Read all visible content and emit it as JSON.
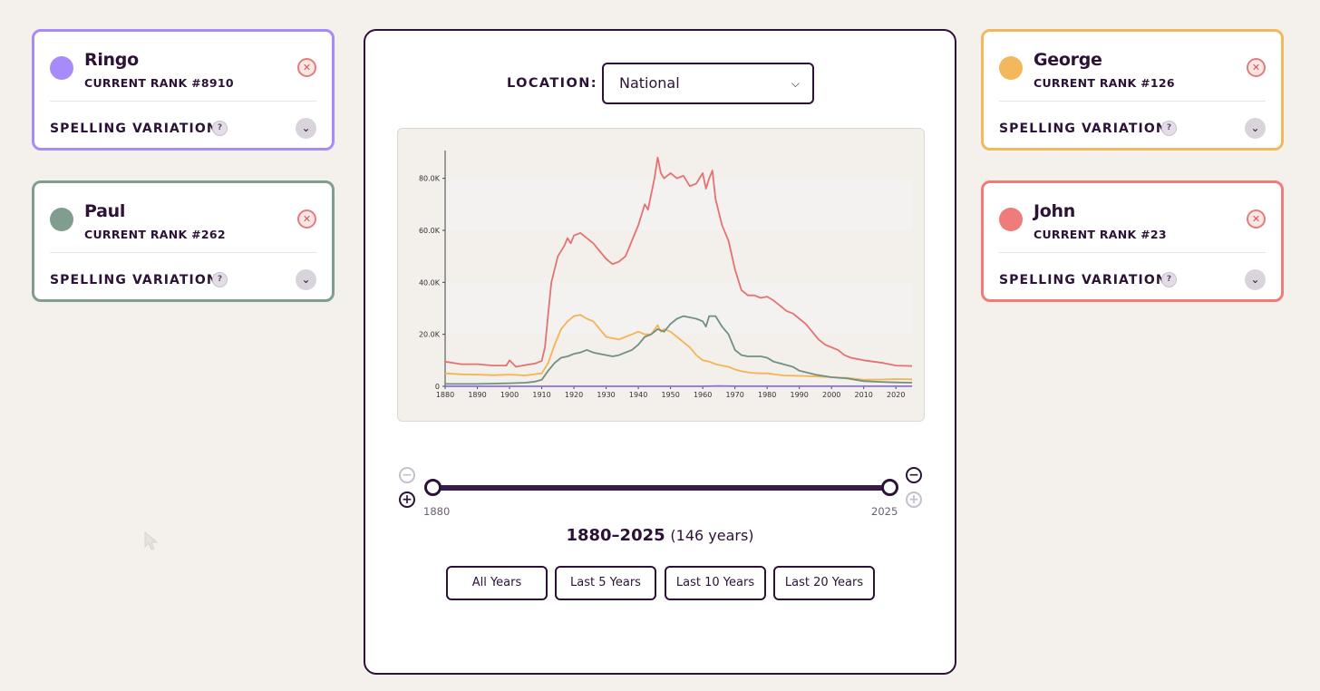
{
  "cards": [
    {
      "name": "Ringo",
      "rank": "CURRENT RANK #8910",
      "color": "#a78bfa"
    },
    {
      "name": "Paul",
      "rank": "CURRENT RANK #262",
      "color": "#7f9e8f"
    },
    {
      "name": "George",
      "rank": "CURRENT RANK #126",
      "color": "#f4b85c"
    },
    {
      "name": "John",
      "rank": "CURRENT RANK #23",
      "color": "#ef7b7b"
    }
  ],
  "spelling_label": "SPELLING VARIATIONS",
  "help_icon": "?",
  "location": {
    "label": "LOCATION:",
    "value": "National"
  },
  "slider": {
    "start_label": "1880",
    "end_label": "2025",
    "range_text": "1880–2025",
    "count_text": "(146 years)"
  },
  "quick_ranges": [
    "All Years",
    "Last 5 Years",
    "Last 10 Years",
    "Last 20 Years"
  ],
  "chart_data": {
    "type": "line",
    "x_ticks": [
      1880,
      1890,
      1900,
      1910,
      1920,
      1930,
      1940,
      1950,
      1960,
      1970,
      1980,
      1990,
      2000,
      2010,
      2020
    ],
    "y_ticks": [
      "0",
      "20.0K",
      "40.0K",
      "60.0K",
      "80.0K"
    ],
    "ylim": [
      0,
      90000
    ],
    "xlim": [
      1880,
      2025
    ],
    "series": [
      {
        "name": "John",
        "color": "#e37272",
        "points": [
          [
            1880,
            9500
          ],
          [
            1885,
            8500
          ],
          [
            1890,
            8500
          ],
          [
            1895,
            8000
          ],
          [
            1899,
            8000
          ],
          [
            1900,
            10000
          ],
          [
            1902,
            7500
          ],
          [
            1905,
            8200
          ],
          [
            1908,
            8800
          ],
          [
            1910,
            9800
          ],
          [
            1911,
            15000
          ],
          [
            1912,
            28000
          ],
          [
            1913,
            40000
          ],
          [
            1915,
            50000
          ],
          [
            1917,
            54000
          ],
          [
            1918,
            57000
          ],
          [
            1919,
            55000
          ],
          [
            1920,
            58000
          ],
          [
            1922,
            59000
          ],
          [
            1924,
            57000
          ],
          [
            1926,
            55000
          ],
          [
            1928,
            52000
          ],
          [
            1930,
            49000
          ],
          [
            1932,
            47000
          ],
          [
            1934,
            48000
          ],
          [
            1936,
            50000
          ],
          [
            1938,
            56000
          ],
          [
            1940,
            62000
          ],
          [
            1942,
            70000
          ],
          [
            1943,
            68000
          ],
          [
            1945,
            80000
          ],
          [
            1946,
            88000
          ],
          [
            1947,
            82000
          ],
          [
            1948,
            80000
          ],
          [
            1950,
            82000
          ],
          [
            1952,
            80000
          ],
          [
            1954,
            81000
          ],
          [
            1956,
            77000
          ],
          [
            1958,
            78000
          ],
          [
            1960,
            82000
          ],
          [
            1961,
            76000
          ],
          [
            1962,
            80000
          ],
          [
            1963,
            83000
          ],
          [
            1964,
            72000
          ],
          [
            1966,
            62000
          ],
          [
            1968,
            56000
          ],
          [
            1970,
            45000
          ],
          [
            1972,
            37000
          ],
          [
            1974,
            35000
          ],
          [
            1976,
            35000
          ],
          [
            1978,
            34000
          ],
          [
            1980,
            34500
          ],
          [
            1982,
            33000
          ],
          [
            1984,
            31000
          ],
          [
            1986,
            29000
          ],
          [
            1988,
            28000
          ],
          [
            1990,
            26000
          ],
          [
            1992,
            24000
          ],
          [
            1994,
            21000
          ],
          [
            1996,
            18000
          ],
          [
            1998,
            16000
          ],
          [
            2000,
            15000
          ],
          [
            2002,
            14000
          ],
          [
            2004,
            12000
          ],
          [
            2006,
            11000
          ],
          [
            2008,
            10500
          ],
          [
            2010,
            10000
          ],
          [
            2013,
            9500
          ],
          [
            2016,
            9000
          ],
          [
            2020,
            8000
          ],
          [
            2025,
            7800
          ]
        ]
      },
      {
        "name": "George",
        "color": "#f4b455",
        "points": [
          [
            1880,
            5000
          ],
          [
            1885,
            4600
          ],
          [
            1890,
            4500
          ],
          [
            1895,
            4300
          ],
          [
            1900,
            4500
          ],
          [
            1905,
            4200
          ],
          [
            1910,
            5000
          ],
          [
            1912,
            9000
          ],
          [
            1914,
            16000
          ],
          [
            1916,
            22000
          ],
          [
            1918,
            25000
          ],
          [
            1920,
            27000
          ],
          [
            1922,
            27500
          ],
          [
            1924,
            26000
          ],
          [
            1926,
            25000
          ],
          [
            1928,
            22000
          ],
          [
            1930,
            19000
          ],
          [
            1932,
            18500
          ],
          [
            1934,
            18000
          ],
          [
            1936,
            19000
          ],
          [
            1938,
            20000
          ],
          [
            1940,
            21000
          ],
          [
            1942,
            20000
          ],
          [
            1944,
            20000
          ],
          [
            1946,
            23500
          ],
          [
            1947,
            21000
          ],
          [
            1948,
            22000
          ],
          [
            1950,
            21000
          ],
          [
            1952,
            19000
          ],
          [
            1954,
            17000
          ],
          [
            1956,
            15000
          ],
          [
            1958,
            12000
          ],
          [
            1960,
            10000
          ],
          [
            1962,
            9500
          ],
          [
            1964,
            8500
          ],
          [
            1966,
            8000
          ],
          [
            1968,
            7500
          ],
          [
            1970,
            6500
          ],
          [
            1972,
            5800
          ],
          [
            1975,
            5200
          ],
          [
            1978,
            5000
          ],
          [
            1980,
            5000
          ],
          [
            1985,
            4200
          ],
          [
            1990,
            4000
          ],
          [
            1995,
            3800
          ],
          [
            2000,
            3500
          ],
          [
            2005,
            3200
          ],
          [
            2010,
            2500
          ],
          [
            2015,
            2600
          ],
          [
            2020,
            2800
          ],
          [
            2025,
            2700
          ]
        ]
      },
      {
        "name": "Paul",
        "color": "#6f9082",
        "points": [
          [
            1880,
            900
          ],
          [
            1890,
            900
          ],
          [
            1900,
            1200
          ],
          [
            1905,
            1400
          ],
          [
            1908,
            1800
          ],
          [
            1910,
            2500
          ],
          [
            1912,
            6000
          ],
          [
            1914,
            9000
          ],
          [
            1916,
            11000
          ],
          [
            1918,
            11500
          ],
          [
            1920,
            12500
          ],
          [
            1922,
            13000
          ],
          [
            1924,
            14000
          ],
          [
            1926,
            13000
          ],
          [
            1928,
            12500
          ],
          [
            1930,
            12000
          ],
          [
            1932,
            11500
          ],
          [
            1934,
            12000
          ],
          [
            1936,
            13000
          ],
          [
            1938,
            14000
          ],
          [
            1940,
            16000
          ],
          [
            1942,
            19000
          ],
          [
            1944,
            20000
          ],
          [
            1946,
            22000
          ],
          [
            1948,
            21000
          ],
          [
            1950,
            24000
          ],
          [
            1952,
            26000
          ],
          [
            1954,
            27000
          ],
          [
            1956,
            26500
          ],
          [
            1958,
            26000
          ],
          [
            1960,
            25000
          ],
          [
            1961,
            23000
          ],
          [
            1962,
            27000
          ],
          [
            1964,
            27000
          ],
          [
            1966,
            23000
          ],
          [
            1968,
            20000
          ],
          [
            1970,
            14000
          ],
          [
            1972,
            12000
          ],
          [
            1974,
            11500
          ],
          [
            1978,
            11500
          ],
          [
            1980,
            11000
          ],
          [
            1982,
            9500
          ],
          [
            1985,
            8500
          ],
          [
            1988,
            7500
          ],
          [
            1990,
            6000
          ],
          [
            1995,
            4500
          ],
          [
            2000,
            3500
          ],
          [
            2005,
            3000
          ],
          [
            2010,
            2000
          ],
          [
            2015,
            1700
          ],
          [
            2020,
            1500
          ],
          [
            2025,
            1400
          ]
        ]
      },
      {
        "name": "Ringo",
        "color": "#8b6fe6",
        "points": [
          [
            1880,
            0
          ],
          [
            1960,
            0
          ],
          [
            1965,
            150
          ],
          [
            1970,
            50
          ],
          [
            2025,
            30
          ]
        ]
      }
    ]
  },
  "icons": {
    "close": "close-icon",
    "chevron": "chevron-down-icon",
    "help": "help-icon",
    "caret": "caret-down-icon",
    "minus": "minus-icon",
    "plus": "plus-icon",
    "cursor": "cursor-icon"
  }
}
